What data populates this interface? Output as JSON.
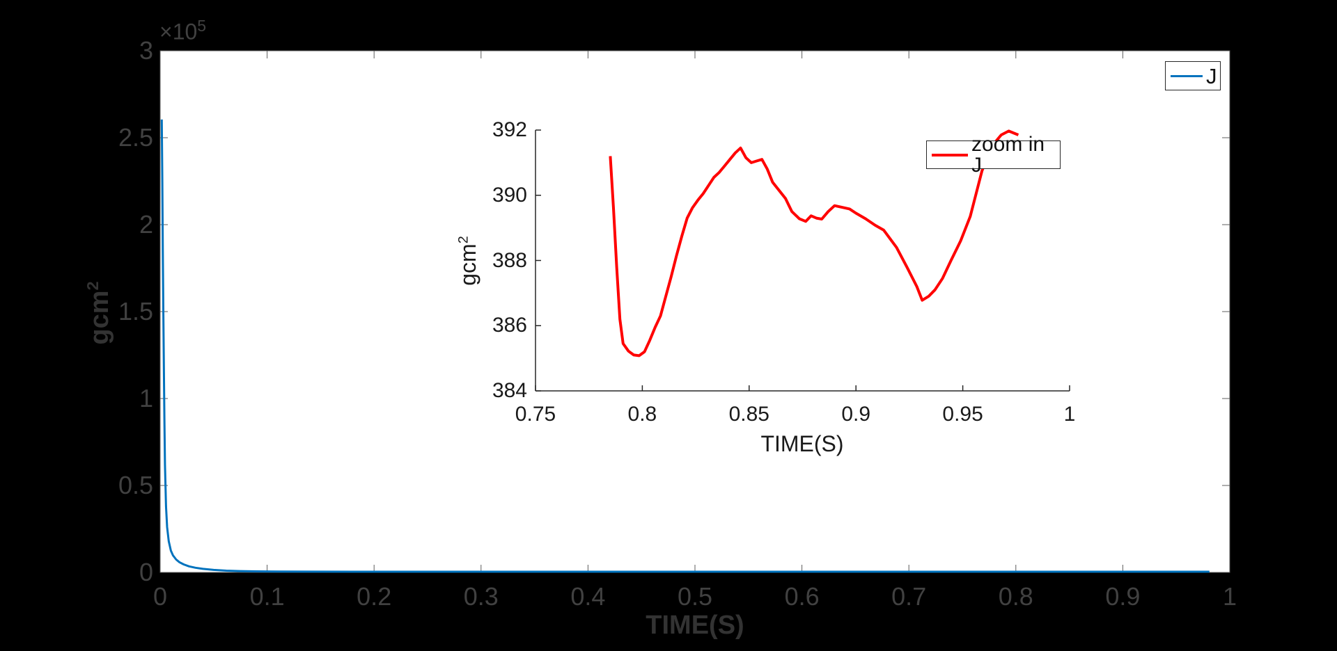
{
  "figure": {
    "background": "#000000",
    "plot_background": "#ffffff",
    "legend_background": "#ffffff",
    "legend_border": "#262626",
    "legend_text_color": "#111111"
  },
  "chart_data": [
    {
      "id": "main",
      "type": "line",
      "title": "",
      "xlabel": "TIME(S)",
      "ylabel_base": "gcm",
      "ylabel_sup": "2",
      "exponent_base": "×10",
      "exponent_sup": "5",
      "xlim": [
        0,
        1
      ],
      "ylim": [
        0,
        300000
      ],
      "grid": false,
      "legend_label": "J",
      "legend_position": "northeast",
      "text_color": "#414141",
      "label_color": "#333333",
      "tick_color": "#5c5c5c",
      "xticks": [
        0,
        0.1,
        0.2,
        0.3,
        0.4,
        0.5,
        0.6,
        0.7,
        0.8,
        0.9,
        1
      ],
      "xtick_labels": [
        "0",
        "0.1",
        "0.2",
        "0.3",
        "0.4",
        "0.5",
        "0.6",
        "0.7",
        "0.8",
        "0.9",
        "1"
      ],
      "yticks": [
        0,
        50000,
        100000,
        150000,
        200000,
        250000,
        300000
      ],
      "ytick_labels": [
        "0",
        "0.5",
        "1",
        "1.5",
        "2",
        "2.5",
        "3"
      ],
      "series": [
        {
          "name": "J",
          "color": "#0072BD",
          "points": [
            [
              0.0015,
              260500
            ],
            [
              0.002,
              225000
            ],
            [
              0.0025,
              185000
            ],
            [
              0.003,
              148000
            ],
            [
              0.0035,
              115000
            ],
            [
              0.004,
              88000
            ],
            [
              0.0045,
              62000
            ],
            [
              0.0055,
              38000
            ],
            [
              0.0065,
              26000
            ],
            [
              0.008,
              18000
            ],
            [
              0.01,
              12500
            ],
            [
              0.012,
              9800
            ],
            [
              0.015,
              7400
            ],
            [
              0.018,
              5900
            ],
            [
              0.022,
              4600
            ],
            [
              0.027,
              3500
            ],
            [
              0.033,
              2700
            ],
            [
              0.04,
              2050
            ],
            [
              0.05,
              1450
            ],
            [
              0.062,
              1000
            ],
            [
              0.075,
              750
            ],
            [
              0.09,
              580
            ],
            [
              0.11,
              470
            ],
            [
              0.14,
              430
            ],
            [
              0.18,
              410
            ],
            [
              0.24,
              400
            ],
            [
              0.32,
              394
            ],
            [
              0.42,
              391
            ],
            [
              0.55,
              390
            ],
            [
              0.7,
              389
            ],
            [
              0.85,
              388
            ],
            [
              0.981,
              388
            ]
          ]
        }
      ]
    },
    {
      "id": "inset",
      "type": "line",
      "title": "",
      "xlabel": "TIME(S)",
      "ylabel_base": "gcm",
      "ylabel_sup": "2",
      "xlim": [
        0.75,
        1
      ],
      "ylim": [
        384,
        392
      ],
      "grid": false,
      "legend_label": "zoom in J",
      "legend_position": "northeast",
      "text_color": "#1a1a1a",
      "label_color": "#1a1a1a",
      "tick_color": "#262626",
      "xticks": [
        0.75,
        0.8,
        0.85,
        0.9,
        0.95,
        1
      ],
      "xtick_labels": [
        "0.75",
        "0.8",
        "0.85",
        "0.9",
        "0.95",
        "1"
      ],
      "yticks": [
        384,
        386,
        388,
        390,
        392
      ],
      "ytick_labels": [
        "384",
        "386",
        "388",
        "390",
        "392"
      ],
      "series": [
        {
          "name": "zoom in J",
          "color": "#ff0000",
          "points": [
            [
              0.785,
              391.2
            ],
            [
              0.7865,
              389.6
            ],
            [
              0.788,
              387.8
            ],
            [
              0.7895,
              386.2
            ],
            [
              0.791,
              385.45
            ],
            [
              0.7935,
              385.22
            ],
            [
              0.796,
              385.1
            ],
            [
              0.7985,
              385.08
            ],
            [
              0.801,
              385.2
            ],
            [
              0.8035,
              385.55
            ],
            [
              0.806,
              385.95
            ],
            [
              0.8085,
              386.3
            ],
            [
              0.811,
              386.9
            ],
            [
              0.8135,
              387.5
            ],
            [
              0.816,
              388.15
            ],
            [
              0.8185,
              388.75
            ],
            [
              0.821,
              389.3
            ],
            [
              0.8235,
              389.62
            ],
            [
              0.826,
              389.85
            ],
            [
              0.8285,
              390.05
            ],
            [
              0.831,
              390.3
            ],
            [
              0.8335,
              390.55
            ],
            [
              0.836,
              390.7
            ],
            [
              0.8385,
              390.9
            ],
            [
              0.841,
              391.1
            ],
            [
              0.8435,
              391.3
            ],
            [
              0.846,
              391.45
            ],
            [
              0.8485,
              391.15
            ],
            [
              0.851,
              391.0
            ],
            [
              0.8535,
              391.05
            ],
            [
              0.856,
              391.1
            ],
            [
              0.8585,
              390.8
            ],
            [
              0.861,
              390.4
            ],
            [
              0.864,
              390.15
            ],
            [
              0.867,
              389.9
            ],
            [
              0.87,
              389.5
            ],
            [
              0.8735,
              389.28
            ],
            [
              0.8765,
              389.2
            ],
            [
              0.879,
              389.37
            ],
            [
              0.8815,
              389.3
            ],
            [
              0.884,
              389.27
            ],
            [
              0.887,
              389.5
            ],
            [
              0.89,
              389.68
            ],
            [
              0.8935,
              389.63
            ],
            [
              0.897,
              389.58
            ],
            [
              0.9,
              389.45
            ],
            [
              0.9045,
              389.28
            ],
            [
              0.909,
              389.08
            ],
            [
              0.913,
              388.93
            ],
            [
              0.919,
              388.4
            ],
            [
              0.924,
              387.78
            ],
            [
              0.9285,
              387.2
            ],
            [
              0.931,
              386.78
            ],
            [
              0.934,
              386.9
            ],
            [
              0.937,
              387.1
            ],
            [
              0.9405,
              387.45
            ],
            [
              0.9445,
              388.0
            ],
            [
              0.949,
              388.6
            ],
            [
              0.9535,
              389.35
            ],
            [
              0.959,
              390.75
            ],
            [
              0.9635,
              391.5
            ],
            [
              0.968,
              391.85
            ],
            [
              0.9715,
              391.97
            ],
            [
              0.976,
              391.85
            ]
          ]
        }
      ]
    }
  ]
}
